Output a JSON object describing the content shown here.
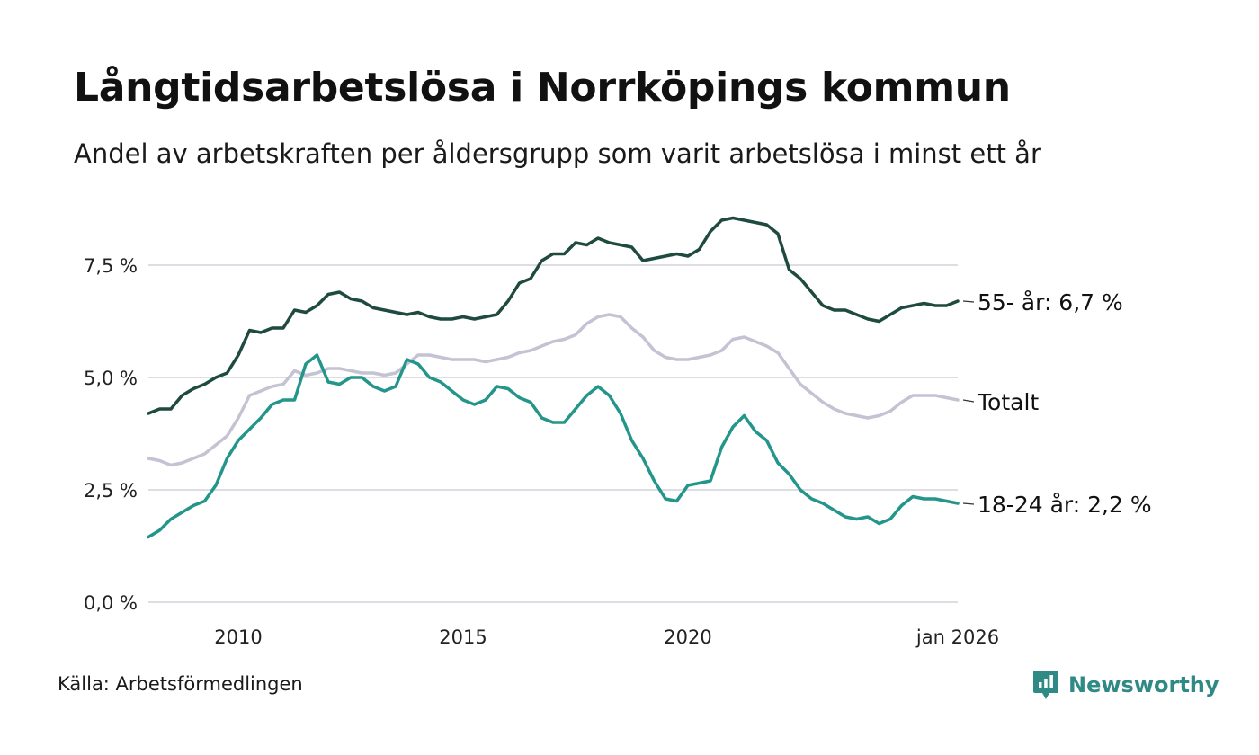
{
  "title": "Långtidsarbetslösa i Norrköpings kommun",
  "subtitle": "Andel av arbetskraften per åldersgrupp som varit arbetslösa i minst ett år",
  "source": "Källa: Arbetsförmedlingen",
  "brand": "Newsworthy",
  "colors": {
    "age55": "#1f4a3f",
    "total": "#c4c2d3",
    "age1824": "#23958a",
    "grid": "#dedde3",
    "brand": "#2f8a86"
  },
  "chart_data": {
    "type": "line",
    "title": "Långtidsarbetslösa i Norrköpings kommun",
    "xlabel": "",
    "ylabel": "",
    "xlim": [
      2008.0,
      2026.0
    ],
    "ylim": [
      0,
      8.8
    ],
    "y_ticks": [
      {
        "value": 0,
        "label": "0,0 %"
      },
      {
        "value": 2.5,
        "label": "2,5 %"
      },
      {
        "value": 5,
        "label": "5,0 %"
      },
      {
        "value": 7.5,
        "label": "7,5 %"
      }
    ],
    "x_ticks": [
      {
        "value": 2010,
        "label": "2010"
      },
      {
        "value": 2015,
        "label": "2015"
      },
      {
        "value": 2020,
        "label": "2020"
      },
      {
        "value": 2026,
        "label": "jan 2026"
      }
    ],
    "series": [
      {
        "name": "55- år",
        "end_label": "55- år: 6,7 %",
        "color_key": "age55",
        "x": [
          2008.0,
          2008.25,
          2008.5,
          2008.75,
          2009.0,
          2009.25,
          2009.5,
          2009.75,
          2010.0,
          2010.25,
          2010.5,
          2010.75,
          2011.0,
          2011.25,
          2011.5,
          2011.75,
          2012.0,
          2012.25,
          2012.5,
          2012.75,
          2013.0,
          2013.25,
          2013.5,
          2013.75,
          2014.0,
          2014.25,
          2014.5,
          2014.75,
          2015.0,
          2015.25,
          2015.5,
          2015.75,
          2016.0,
          2016.25,
          2016.5,
          2016.75,
          2017.0,
          2017.25,
          2017.5,
          2017.75,
          2018.0,
          2018.25,
          2018.5,
          2018.75,
          2019.0,
          2019.25,
          2019.5,
          2019.75,
          2020.0,
          2020.25,
          2020.5,
          2020.75,
          2021.0,
          2021.25,
          2021.5,
          2021.75,
          2022.0,
          2022.25,
          2022.5,
          2022.75,
          2023.0,
          2023.25,
          2023.5,
          2023.75,
          2024.0,
          2024.25,
          2024.5,
          2024.75,
          2025.0,
          2025.25,
          2025.5,
          2025.75,
          2026.0
        ],
        "values": [
          4.2,
          4.3,
          4.3,
          4.6,
          4.75,
          4.85,
          5.0,
          5.1,
          5.5,
          6.05,
          6.0,
          6.1,
          6.1,
          6.5,
          6.45,
          6.6,
          6.85,
          6.9,
          6.75,
          6.7,
          6.55,
          6.5,
          6.45,
          6.4,
          6.45,
          6.35,
          6.3,
          6.3,
          6.35,
          6.3,
          6.35,
          6.4,
          6.7,
          7.1,
          7.2,
          7.6,
          7.75,
          7.75,
          8.0,
          7.95,
          8.1,
          8.0,
          7.95,
          7.9,
          7.6,
          7.65,
          7.7,
          7.75,
          7.7,
          7.85,
          8.25,
          8.5,
          8.55,
          8.5,
          8.45,
          8.4,
          8.2,
          7.4,
          7.2,
          6.9,
          6.6,
          6.5,
          6.5,
          6.4,
          6.3,
          6.25,
          6.4,
          6.55,
          6.6,
          6.65,
          6.6,
          6.6,
          6.7
        ]
      },
      {
        "name": "Totalt",
        "end_label": "Totalt",
        "color_key": "total",
        "x": [
          2008.0,
          2008.25,
          2008.5,
          2008.75,
          2009.0,
          2009.25,
          2009.5,
          2009.75,
          2010.0,
          2010.25,
          2010.5,
          2010.75,
          2011.0,
          2011.25,
          2011.5,
          2011.75,
          2012.0,
          2012.25,
          2012.5,
          2012.75,
          2013.0,
          2013.25,
          2013.5,
          2013.75,
          2014.0,
          2014.25,
          2014.5,
          2014.75,
          2015.0,
          2015.25,
          2015.5,
          2015.75,
          2016.0,
          2016.25,
          2016.5,
          2016.75,
          2017.0,
          2017.25,
          2017.5,
          2017.75,
          2018.0,
          2018.25,
          2018.5,
          2018.75,
          2019.0,
          2019.25,
          2019.5,
          2019.75,
          2020.0,
          2020.25,
          2020.5,
          2020.75,
          2021.0,
          2021.25,
          2021.5,
          2021.75,
          2022.0,
          2022.25,
          2022.5,
          2022.75,
          2023.0,
          2023.25,
          2023.5,
          2023.75,
          2024.0,
          2024.25,
          2024.5,
          2024.75,
          2025.0,
          2025.25,
          2025.5,
          2025.75,
          2026.0
        ],
        "values": [
          3.2,
          3.15,
          3.05,
          3.1,
          3.2,
          3.3,
          3.5,
          3.7,
          4.1,
          4.6,
          4.7,
          4.8,
          4.85,
          5.15,
          5.05,
          5.1,
          5.2,
          5.2,
          5.15,
          5.1,
          5.1,
          5.05,
          5.1,
          5.3,
          5.5,
          5.5,
          5.45,
          5.4,
          5.4,
          5.4,
          5.35,
          5.4,
          5.45,
          5.55,
          5.6,
          5.7,
          5.8,
          5.85,
          5.95,
          6.2,
          6.35,
          6.4,
          6.35,
          6.1,
          5.9,
          5.6,
          5.45,
          5.4,
          5.4,
          5.45,
          5.5,
          5.6,
          5.85,
          5.9,
          5.8,
          5.7,
          5.55,
          5.2,
          4.85,
          4.65,
          4.45,
          4.3,
          4.2,
          4.15,
          4.1,
          4.15,
          4.25,
          4.45,
          4.6,
          4.6,
          4.6,
          4.55,
          4.5
        ]
      },
      {
        "name": "18-24 år",
        "end_label": "18-24 år: 2,2 %",
        "color_key": "age1824",
        "x": [
          2008.0,
          2008.25,
          2008.5,
          2008.75,
          2009.0,
          2009.25,
          2009.5,
          2009.75,
          2010.0,
          2010.25,
          2010.5,
          2010.75,
          2011.0,
          2011.25,
          2011.5,
          2011.75,
          2012.0,
          2012.25,
          2012.5,
          2012.75,
          2013.0,
          2013.25,
          2013.5,
          2013.75,
          2014.0,
          2014.25,
          2014.5,
          2014.75,
          2015.0,
          2015.25,
          2015.5,
          2015.75,
          2016.0,
          2016.25,
          2016.5,
          2016.75,
          2017.0,
          2017.25,
          2017.5,
          2017.75,
          2018.0,
          2018.25,
          2018.5,
          2018.75,
          2019.0,
          2019.25,
          2019.5,
          2019.75,
          2020.0,
          2020.25,
          2020.5,
          2020.75,
          2021.0,
          2021.25,
          2021.5,
          2021.75,
          2022.0,
          2022.25,
          2022.5,
          2022.75,
          2023.0,
          2023.25,
          2023.5,
          2023.75,
          2024.0,
          2024.25,
          2024.5,
          2024.75,
          2025.0,
          2025.25,
          2025.5,
          2025.75,
          2026.0
        ],
        "values": [
          1.45,
          1.6,
          1.85,
          2.0,
          2.15,
          2.25,
          2.6,
          3.2,
          3.6,
          3.85,
          4.1,
          4.4,
          4.5,
          4.5,
          5.3,
          5.5,
          4.9,
          4.85,
          5.0,
          5.0,
          4.8,
          4.7,
          4.8,
          5.4,
          5.3,
          5.0,
          4.9,
          4.7,
          4.5,
          4.4,
          4.5,
          4.8,
          4.75,
          4.55,
          4.45,
          4.1,
          4.0,
          4.0,
          4.3,
          4.6,
          4.8,
          4.6,
          4.2,
          3.6,
          3.2,
          2.7,
          2.3,
          2.25,
          2.6,
          2.65,
          2.7,
          3.45,
          3.9,
          4.15,
          3.8,
          3.6,
          3.1,
          2.85,
          2.5,
          2.3,
          2.2,
          2.05,
          1.9,
          1.85,
          1.9,
          1.75,
          1.85,
          2.15,
          2.35,
          2.3,
          2.3,
          2.25,
          2.2
        ]
      }
    ]
  }
}
